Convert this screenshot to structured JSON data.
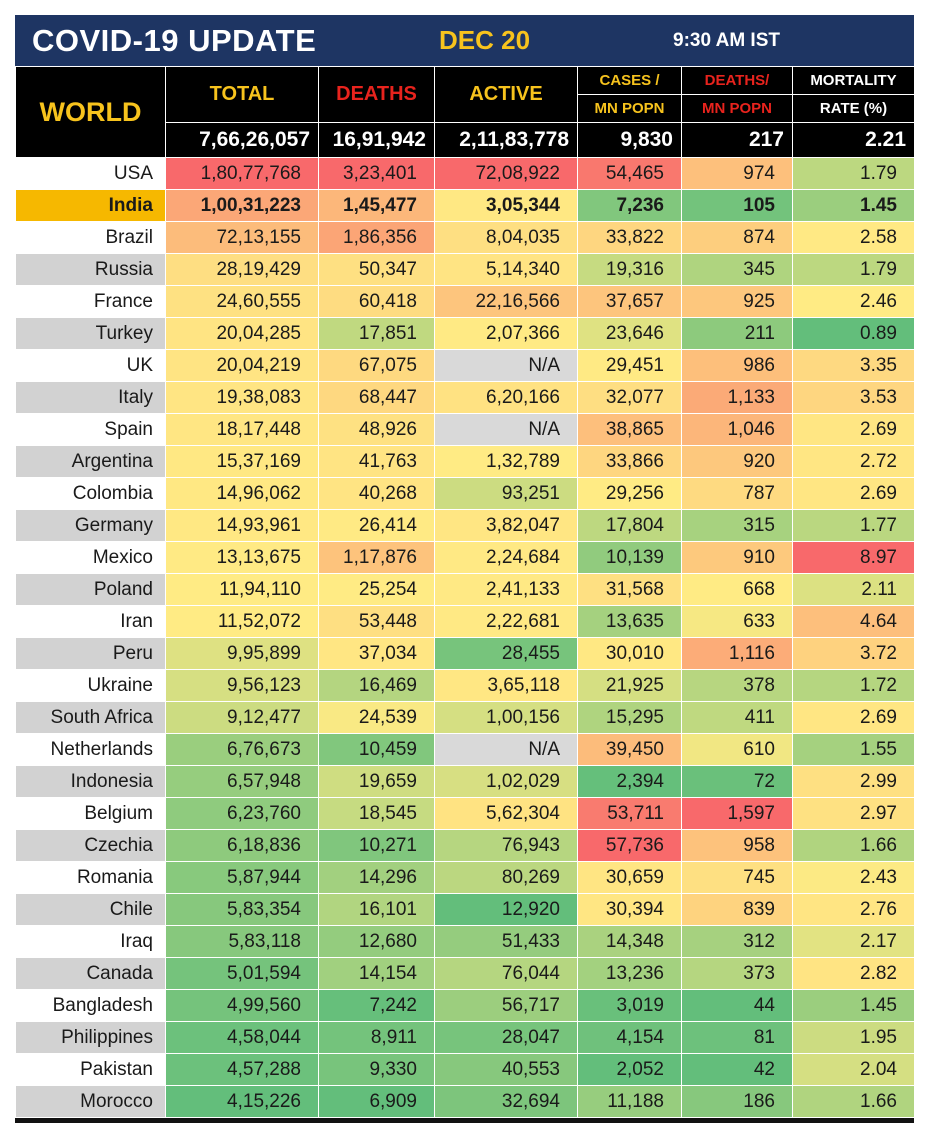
{
  "header": {
    "title": "COVID-19 UPDATE",
    "date": "DEC 20",
    "time": "9:30 AM IST"
  },
  "columns": {
    "world": "WORLD",
    "total": "TOTAL",
    "deaths": "DEATHS",
    "active": "ACTIVE",
    "cases_mn_top": "CASES /",
    "cases_mn_bottom": "MN POPN",
    "deaths_mn_top": "DEATHS/",
    "deaths_mn_bottom": "MN POPN",
    "mortality_top": "MORTALITY",
    "mortality_bottom": "RATE (%)"
  },
  "world_totals": {
    "total": "7,66,26,057",
    "deaths": "16,91,942",
    "active": "2,11,83,778",
    "cases_per_mn": "9,830",
    "deaths_per_mn": "217",
    "mortality": "2.21"
  },
  "colors": {
    "banner": "#1e3563",
    "accent_yellow": "#f7c31d",
    "accent_red": "#e8231d",
    "india_highlight": "#f6b800",
    "na_gray": "#d9d9d9"
  },
  "rows": [
    {
      "country": "USA",
      "total": "1,80,77,768",
      "deaths": "3,23,401",
      "active": "72,08,922",
      "cases_mn": "54,465",
      "deaths_mn": "974",
      "mortality": "1.79"
    },
    {
      "country": "India",
      "total": "1,00,31,223",
      "deaths": "1,45,477",
      "active": "3,05,344",
      "cases_mn": "7,236",
      "deaths_mn": "105",
      "mortality": "1.45"
    },
    {
      "country": "Brazil",
      "total": "72,13,155",
      "deaths": "1,86,356",
      "active": "8,04,035",
      "cases_mn": "33,822",
      "deaths_mn": "874",
      "mortality": "2.58"
    },
    {
      "country": "Russia",
      "total": "28,19,429",
      "deaths": "50,347",
      "active": "5,14,340",
      "cases_mn": "19,316",
      "deaths_mn": "345",
      "mortality": "1.79"
    },
    {
      "country": "France",
      "total": "24,60,555",
      "deaths": "60,418",
      "active": "22,16,566",
      "cases_mn": "37,657",
      "deaths_mn": "925",
      "mortality": "2.46"
    },
    {
      "country": "Turkey",
      "total": "20,04,285",
      "deaths": "17,851",
      "active": "2,07,366",
      "cases_mn": "23,646",
      "deaths_mn": "211",
      "mortality": "0.89"
    },
    {
      "country": "UK",
      "total": "20,04,219",
      "deaths": "67,075",
      "active": "N/A",
      "cases_mn": "29,451",
      "deaths_mn": "986",
      "mortality": "3.35"
    },
    {
      "country": "Italy",
      "total": "19,38,083",
      "deaths": "68,447",
      "active": "6,20,166",
      "cases_mn": "32,077",
      "deaths_mn": "1,133",
      "mortality": "3.53"
    },
    {
      "country": "Spain",
      "total": "18,17,448",
      "deaths": "48,926",
      "active": "N/A",
      "cases_mn": "38,865",
      "deaths_mn": "1,046",
      "mortality": "2.69"
    },
    {
      "country": "Argentina",
      "total": "15,37,169",
      "deaths": "41,763",
      "active": "1,32,789",
      "cases_mn": "33,866",
      "deaths_mn": "920",
      "mortality": "2.72"
    },
    {
      "country": "Colombia",
      "total": "14,96,062",
      "deaths": "40,268",
      "active": "93,251",
      "cases_mn": "29,256",
      "deaths_mn": "787",
      "mortality": "2.69"
    },
    {
      "country": "Germany",
      "total": "14,93,961",
      "deaths": "26,414",
      "active": "3,82,047",
      "cases_mn": "17,804",
      "deaths_mn": "315",
      "mortality": "1.77"
    },
    {
      "country": "Mexico",
      "total": "13,13,675",
      "deaths": "1,17,876",
      "active": "2,24,684",
      "cases_mn": "10,139",
      "deaths_mn": "910",
      "mortality": "8.97"
    },
    {
      "country": "Poland",
      "total": "11,94,110",
      "deaths": "25,254",
      "active": "2,41,133",
      "cases_mn": "31,568",
      "deaths_mn": "668",
      "mortality": "2.11"
    },
    {
      "country": "Iran",
      "total": "11,52,072",
      "deaths": "53,448",
      "active": "2,22,681",
      "cases_mn": "13,635",
      "deaths_mn": "633",
      "mortality": "4.64"
    },
    {
      "country": "Peru",
      "total": "9,95,899",
      "deaths": "37,034",
      "active": "28,455",
      "cases_mn": "30,010",
      "deaths_mn": "1,116",
      "mortality": "3.72"
    },
    {
      "country": "Ukraine",
      "total": "9,56,123",
      "deaths": "16,469",
      "active": "3,65,118",
      "cases_mn": "21,925",
      "deaths_mn": "378",
      "mortality": "1.72"
    },
    {
      "country": "South Africa",
      "total": "9,12,477",
      "deaths": "24,539",
      "active": "1,00,156",
      "cases_mn": "15,295",
      "deaths_mn": "411",
      "mortality": "2.69"
    },
    {
      "country": "Netherlands",
      "total": "6,76,673",
      "deaths": "10,459",
      "active": "N/A",
      "cases_mn": "39,450",
      "deaths_mn": "610",
      "mortality": "1.55"
    },
    {
      "country": "Indonesia",
      "total": "6,57,948",
      "deaths": "19,659",
      "active": "1,02,029",
      "cases_mn": "2,394",
      "deaths_mn": "72",
      "mortality": "2.99"
    },
    {
      "country": "Belgium",
      "total": "6,23,760",
      "deaths": "18,545",
      "active": "5,62,304",
      "cases_mn": "53,711",
      "deaths_mn": "1,597",
      "mortality": "2.97"
    },
    {
      "country": "Czechia",
      "total": "6,18,836",
      "deaths": "10,271",
      "active": "76,943",
      "cases_mn": "57,736",
      "deaths_mn": "958",
      "mortality": "1.66"
    },
    {
      "country": "Romania",
      "total": "5,87,944",
      "deaths": "14,296",
      "active": "80,269",
      "cases_mn": "30,659",
      "deaths_mn": "745",
      "mortality": "2.43"
    },
    {
      "country": "Chile",
      "total": "5,83,354",
      "deaths": "16,101",
      "active": "12,920",
      "cases_mn": "30,394",
      "deaths_mn": "839",
      "mortality": "2.76"
    },
    {
      "country": "Iraq",
      "total": "5,83,118",
      "deaths": "12,680",
      "active": "51,433",
      "cases_mn": "14,348",
      "deaths_mn": "312",
      "mortality": "2.17"
    },
    {
      "country": "Canada",
      "total": "5,01,594",
      "deaths": "14,154",
      "active": "76,044",
      "cases_mn": "13,236",
      "deaths_mn": "373",
      "mortality": "2.82"
    },
    {
      "country": "Bangladesh",
      "total": "4,99,560",
      "deaths": "7,242",
      "active": "56,717",
      "cases_mn": "3,019",
      "deaths_mn": "44",
      "mortality": "1.45"
    },
    {
      "country": "Philippines",
      "total": "4,58,044",
      "deaths": "8,911",
      "active": "28,047",
      "cases_mn": "4,154",
      "deaths_mn": "81",
      "mortality": "1.95"
    },
    {
      "country": "Pakistan",
      "total": "4,57,288",
      "deaths": "9,330",
      "active": "40,553",
      "cases_mn": "2,052",
      "deaths_mn": "42",
      "mortality": "2.04"
    },
    {
      "country": "Morocco",
      "total": "4,15,226",
      "deaths": "6,909",
      "active": "32,694",
      "cases_mn": "11,188",
      "deaths_mn": "186",
      "mortality": "1.66"
    }
  ]
}
